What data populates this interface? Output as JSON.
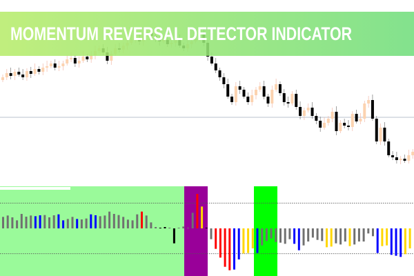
{
  "banner": {
    "title": "MOMENTUM REVERSAL DETECTOR INDICATOR",
    "gradient_start": "#b8ec6c",
    "gradient_end": "#72de7e"
  },
  "colors": {
    "bull_candle": "#fcd3b0",
    "bear_candle": "#000000",
    "panel_bg": "#9afa9a",
    "reversal_up_zone": "#990099",
    "reversal_down_zone": "#00ff00",
    "hist_neutral": "#707070",
    "hist_blue": "#0000ff",
    "hist_red": "#ff0000",
    "hist_gold": "#ffd700",
    "hist_black": "#000000"
  },
  "chart_data": [
    {
      "type": "candlestick",
      "title": "",
      "close": [
        288,
        294,
        290,
        296,
        292,
        288,
        297,
        293,
        300,
        296,
        302,
        304,
        308,
        302,
        304,
        308,
        314,
        316,
        308,
        312,
        318,
        314,
        320,
        326,
        330,
        324,
        312,
        322,
        330,
        328,
        334,
        338,
        342,
        345,
        340,
        350,
        352,
        348,
        344,
        340,
        342,
        336,
        338,
        342,
        334,
        330,
        336,
        340,
        344,
        350,
        338,
        318,
        308,
        298,
        288,
        278,
        260,
        252,
        275,
        270,
        260,
        252,
        262,
        270,
        275,
        260,
        250,
        270,
        278,
        265,
        252,
        250,
        264,
        245,
        232,
        240,
        244,
        232,
        225,
        215,
        222,
        228,
        238,
        210,
        222,
        218,
        216,
        235,
        224,
        228,
        250,
        255,
        228,
        195,
        215,
        195,
        175,
        172,
        168,
        170,
        167,
        175,
        180
      ],
      "reference_line": "horizontal"
    },
    {
      "type": "bar",
      "title": "",
      "levels": [
        110,
        -110
      ],
      "values": [
        50,
        56,
        48,
        35,
        63,
        51,
        56,
        53,
        57,
        58,
        48,
        57,
        61,
        35,
        41,
        50,
        41,
        39,
        43,
        61,
        57,
        53,
        56,
        73,
        63,
        58,
        50,
        38,
        35,
        61,
        73,
        56,
        26,
        6,
        1,
        6,
        2,
        -65,
        3,
        8,
        3,
        68,
        150,
        95,
        0,
        -47,
        -89,
        -127,
        -167,
        -182,
        -179,
        -135,
        -109,
        -107,
        -87,
        -107,
        -74,
        -55,
        -44,
        -59,
        -62,
        -67,
        -47,
        -67,
        -95,
        -74,
        -57,
        -40,
        -50,
        -55,
        -82,
        -79,
        -65,
        -70,
        -57,
        -77,
        -70,
        -57,
        -57,
        -22,
        -34,
        -107,
        -77,
        -74,
        -115,
        -119,
        -124,
        -112,
        -87
      ],
      "colors": [
        "n",
        "n",
        "n",
        "n",
        "n",
        "n",
        "n",
        "b",
        "b",
        "n",
        "n",
        "n",
        "b",
        "b",
        "n",
        "n",
        "b",
        "n",
        "n",
        "b",
        "b",
        "n",
        "n",
        "n",
        "n",
        "n",
        "n",
        "n",
        "n",
        "n",
        "r",
        "n",
        "n",
        "n",
        "k",
        "k",
        "n",
        "k",
        "n",
        "n",
        "n",
        "n",
        "r",
        "g",
        "k",
        "n",
        "r",
        "r",
        "r",
        "r",
        "b",
        "b",
        "g",
        "g",
        "g",
        "b",
        "n",
        "n",
        "n",
        "n",
        "n",
        "n",
        "n",
        "b",
        "b",
        "n",
        "n",
        "n",
        "n",
        "n",
        "g",
        "g",
        "n",
        "n",
        "n",
        "g",
        "n",
        "n",
        "n",
        "n",
        "n",
        "b",
        "g",
        "g",
        "b",
        "b",
        "b",
        "g",
        "g"
      ],
      "zones": [
        {
          "from_bar": 40,
          "to_bar": 44,
          "type": "reversal_up_zone"
        },
        {
          "from_bar": 55,
          "to_bar": 59,
          "type": "reversal_down_zone"
        }
      ]
    }
  ]
}
